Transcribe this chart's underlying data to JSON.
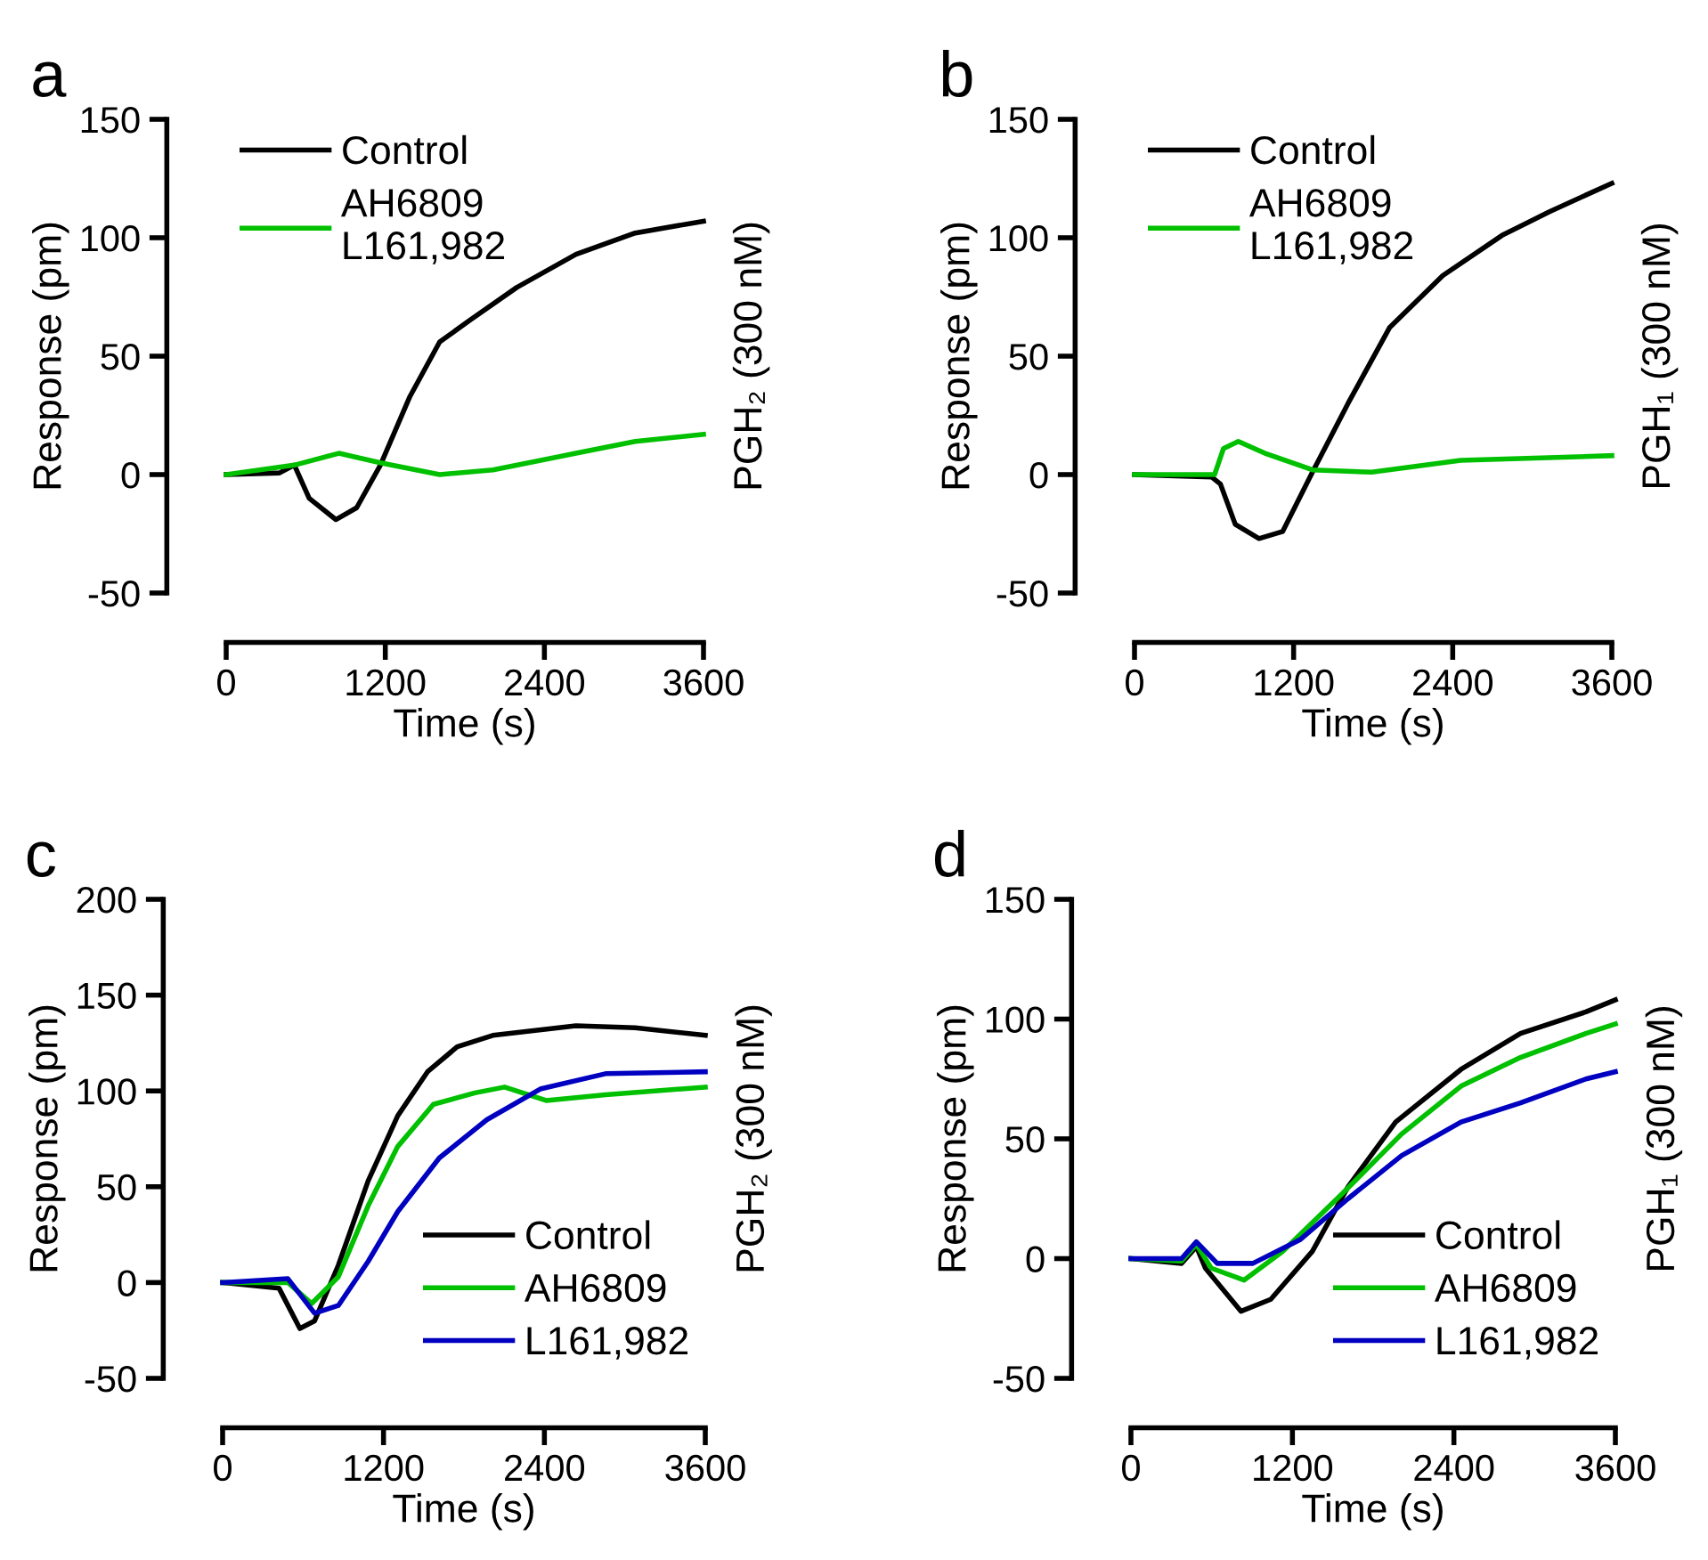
{
  "chart_data": [
    {
      "type": "line",
      "title": "a",
      "xlabel": "Time (s)",
      "ylabel": "Response (pm)",
      "annotations": [
        "PGH₂ (300 nM)"
      ],
      "xlim": [
        0,
        3600
      ],
      "xticks": [
        0,
        1200,
        2400,
        3600
      ],
      "ylim": [
        -50,
        150
      ],
      "yticks": [
        -50,
        0,
        50,
        100,
        150
      ],
      "legend": "top left",
      "grid": false,
      "series": [
        {
          "name": "Control",
          "color": "#000000",
          "x": [
            0,
            402,
            514,
            626,
            827,
            984,
            1163,
            1386,
            1610,
            1834,
            2191,
            2638,
            3085,
            3600
          ],
          "values": [
            0,
            0.7,
            4,
            -10,
            -19,
            -14,
            4,
            33,
            56,
            65,
            79,
            93,
            102,
            107
          ]
        },
        {
          "name": "AH6809\nL161,982",
          "color": "#00c000",
          "x": [
            0,
            514,
            850,
            1163,
            1610,
            2012,
            2638,
            3085,
            3600
          ],
          "values": [
            0,
            4,
            9,
            5,
            0,
            2,
            9,
            14,
            17
          ]
        }
      ]
    },
    {
      "type": "line",
      "title": "b",
      "xlabel": "Time (s)",
      "ylabel": "Response (pm)",
      "annotations": [
        "PGH₁ (300 nM)"
      ],
      "xlim": [
        0,
        3600
      ],
      "xticks": [
        0,
        1200,
        2400,
        3600
      ],
      "ylim": [
        -50,
        150
      ],
      "yticks": [
        -50,
        0,
        50,
        100,
        150
      ],
      "legend": "top left",
      "grid": false,
      "series": [
        {
          "name": "Control",
          "color": "#000000",
          "x": [
            0,
            581,
            648,
            760,
            939,
            1118,
            1342,
            1610,
            1923,
            2325,
            2772,
            3130,
            3600
          ],
          "values": [
            0,
            -1,
            -4,
            -21,
            -27,
            -24,
            1,
            30,
            62,
            84,
            101,
            111,
            123
          ]
        },
        {
          "name": "AH6809\nL161,982",
          "color": "#00c000",
          "x": [
            0,
            604,
            671,
            783,
            984,
            1342,
            1789,
            2460,
            3600
          ],
          "values": [
            0,
            0,
            11,
            14,
            9,
            2,
            1,
            6,
            8
          ]
        }
      ]
    },
    {
      "type": "line",
      "title": "c",
      "xlabel": "Time (s)",
      "ylabel": "Response (pm)",
      "annotations": [
        "PGH₂ (300 nM)"
      ],
      "xlim": [
        0,
        3600
      ],
      "xticks": [
        0,
        1200,
        2400,
        3600
      ],
      "ylim": [
        -50,
        200
      ],
      "yticks": [
        -50,
        0,
        50,
        100,
        150,
        200
      ],
      "legend": "bottom right",
      "grid": false,
      "series": [
        {
          "name": "Control",
          "color": "#000000",
          "x": [
            0,
            421,
            576,
            686,
            863,
            1085,
            1306,
            1528,
            1749,
            2015,
            2635,
            3077,
            3600
          ],
          "values": [
            0,
            -3,
            -24,
            -20,
            9,
            53,
            87,
            110,
            123,
            129,
            134,
            133,
            129
          ]
        },
        {
          "name": "AH6809",
          "color": "#00c000",
          "x": [
            0,
            487,
            664,
            863,
            1085,
            1306,
            1572,
            1882,
            2103,
            2413,
            2856,
            3600
          ],
          "values": [
            0,
            0,
            -11,
            3,
            40,
            71,
            93,
            99,
            102,
            95,
            98,
            102
          ]
        },
        {
          "name": "L161,982",
          "color": "#0000c0",
          "x": [
            0,
            487,
            686,
            863,
            1085,
            1306,
            1616,
            1971,
            2369,
            2856,
            3600
          ],
          "values": [
            0,
            2,
            -16,
            -12,
            11,
            37,
            65,
            85,
            101,
            109,
            110
          ]
        }
      ]
    },
    {
      "type": "line",
      "title": "d",
      "xlabel": "Time (s)",
      "ylabel": "Response (pm)",
      "annotations": [
        "PGH₁ (300 nM)"
      ],
      "xlim": [
        0,
        3600
      ],
      "xticks": [
        0,
        1200,
        2400,
        3600
      ],
      "ylim": [
        -50,
        150
      ],
      "yticks": [
        -50,
        0,
        50,
        100,
        150
      ],
      "legend": "bottom right",
      "grid": false,
      "series": [
        {
          "name": "Control",
          "color": "#000000",
          "x": [
            0,
            376,
            486,
            553,
            818,
            1039,
            1348,
            1613,
            1967,
            2453,
            2895,
            3381,
            3600
          ],
          "values": [
            0,
            -2,
            5,
            -4,
            -22,
            -17,
            3,
            30,
            57,
            79,
            94,
            103,
            108
          ]
        },
        {
          "name": "AH6809",
          "color": "#00c000",
          "x": [
            0,
            376,
            486,
            597,
            840,
            1127,
            1569,
            2011,
            2453,
            2895,
            3381,
            3600
          ],
          "values": [
            0,
            -1,
            6,
            -4,
            -9,
            3,
            27,
            52,
            72,
            84,
            94,
            98
          ]
        },
        {
          "name": "L161,982",
          "color": "#0000c0",
          "x": [
            0,
            376,
            486,
            641,
            906,
            1260,
            1613,
            2011,
            2453,
            2895,
            3381,
            3600
          ],
          "values": [
            0,
            0,
            7,
            -2,
            -2,
            8,
            25,
            43,
            57,
            65,
            75,
            78
          ]
        }
      ]
    }
  ]
}
